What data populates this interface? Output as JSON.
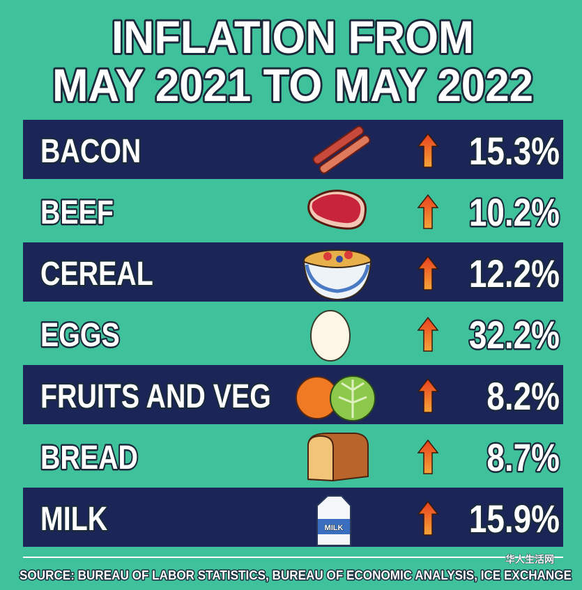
{
  "title": [
    "INFLATION FROM",
    "MAY 2021 TO MAY 2022"
  ],
  "rows": [
    {
      "item": "BACON",
      "change": "15.3%"
    },
    {
      "item": "BEEF",
      "change": "10.2%"
    },
    {
      "item": "CEREAL",
      "change": "12.2%"
    },
    {
      "item": "EGGS",
      "change": "32.2%"
    },
    {
      "item": "FRUITS AND VEG",
      "change": "8.2%"
    },
    {
      "item": "BREAD",
      "change": "8.7%"
    },
    {
      "item": "MILK",
      "change": "15.9%"
    }
  ],
  "source": "SOURCE: BUREAU OF LABOR STATISTICS, BUREAU OF ECONOMIC ANALYSIS, ICE EXCHANGE",
  "watermark": "华人生活网"
}
